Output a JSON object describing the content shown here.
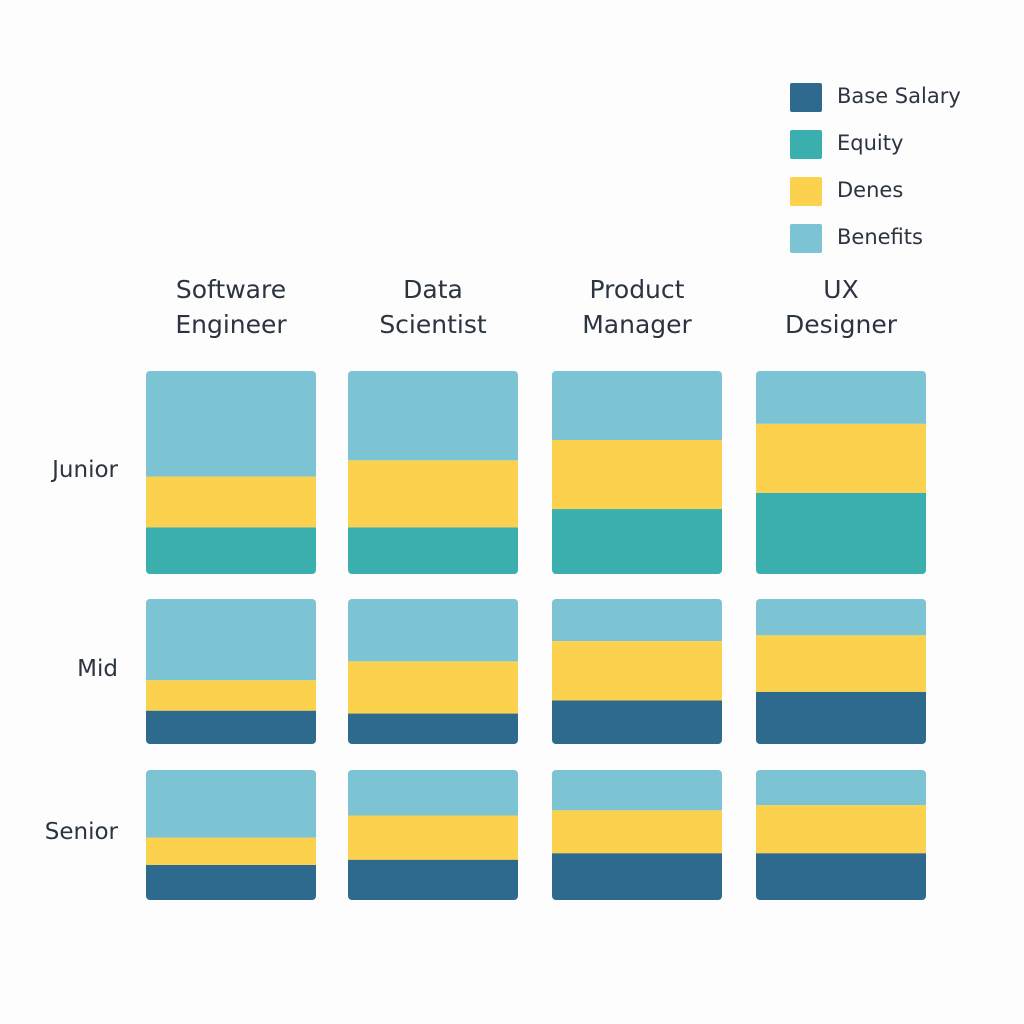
{
  "chart_data": {
    "type": "stacked-grid",
    "categories": [
      "Software Engineer",
      "Data Scientist",
      "Product Manager",
      "UX Designer"
    ],
    "rows": [
      "Junior",
      "Mid",
      "Senior"
    ],
    "legend": "top-right",
    "series": [
      {
        "name": "Base Salary",
        "color": "#2e6a8e",
        "values": [
          [
            null,
            null,
            null,
            null
          ],
          [
            23,
            21,
            30,
            36
          ],
          [
            27,
            31,
            36,
            36
          ]
        ]
      },
      {
        "name": "Equity",
        "color": "#3aafad",
        "values": [
          [
            23,
            23,
            32,
            40
          ],
          [
            null,
            null,
            null,
            null
          ],
          [
            null,
            null,
            null,
            null
          ]
        ]
      },
      {
        "name": "Denes",
        "color": "#fcd14d",
        "values": [
          [
            25,
            33,
            34,
            34
          ],
          [
            21,
            36,
            41,
            39
          ],
          [
            21,
            34,
            33,
            37
          ]
        ]
      },
      {
        "name": "Benefits",
        "color": "#7cc3d3",
        "values": [
          [
            52,
            44,
            34,
            26
          ],
          [
            56,
            43,
            29,
            25
          ],
          [
            52,
            35,
            31,
            27
          ]
        ]
      }
    ]
  }
}
